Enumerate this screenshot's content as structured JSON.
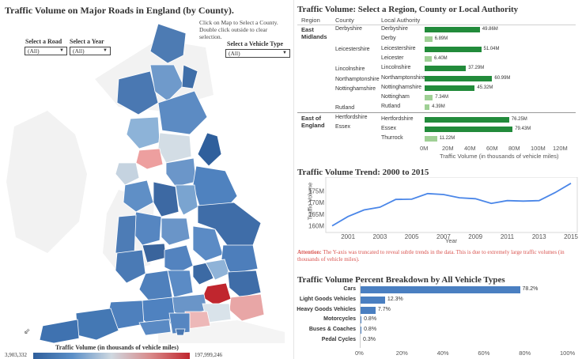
{
  "map": {
    "title": "Traffic Volume on Major Roads in England (by County).",
    "instructions": "Click on Map to Select a County. Double click outside to clear selection.",
    "filters": {
      "road": {
        "label": "Select a Road",
        "value": "(All)"
      },
      "year": {
        "label": "Select a Year",
        "value": "(All)"
      },
      "vehicle_type": {
        "label": "Select a Vehicle Type",
        "value": "(All)"
      }
    },
    "legend": {
      "title": "Traffic Volume (in thousands of vehicle miles)",
      "min": "3,903,332",
      "max": "197,999,246",
      "colors": [
        "#2f5f9c",
        "#5b8fc7",
        "#cfd8e0",
        "#d98a8a",
        "#c0262e"
      ]
    }
  },
  "authority_chart": {
    "title": "Traffic Volume: Select a Region, County or Local Authority",
    "headers": {
      "region": "Region",
      "county": "County",
      "authority": "Local Authority"
    },
    "regions": [
      {
        "name": "East Midlands",
        "line1": "East",
        "line2": "Midlands"
      },
      {
        "name": "East of England",
        "line1": "East of",
        "line2": "England"
      }
    ],
    "counties": [
      "Derbyshire",
      "Leicestershire",
      "Lincolnshire",
      "Northamptonshire",
      "Nottinghamshire",
      "Rutland",
      "Hertfordshire",
      "Essex"
    ],
    "rows": [
      {
        "authority": "Derbyshire",
        "value": 49.86,
        "label": "49.86M",
        "dark": true
      },
      {
        "authority": "Derby",
        "value": 6.89,
        "label": "6.89M",
        "dark": false
      },
      {
        "authority": "Leicestershire",
        "value": 51.04,
        "label": "51.04M",
        "dark": true
      },
      {
        "authority": "Leicester",
        "value": 6.4,
        "label": "6.40M",
        "dark": false
      },
      {
        "authority": "Lincolnshire",
        "value": 37.29,
        "label": "37.29M",
        "dark": true
      },
      {
        "authority": "Northamptonshire",
        "value": 60.99,
        "label": "60.99M",
        "dark": true
      },
      {
        "authority": "Nottinghamshire",
        "value": 45.32,
        "label": "45.32M",
        "dark": true
      },
      {
        "authority": "Nottingham",
        "value": 7.34,
        "label": "7.34M",
        "dark": false
      },
      {
        "authority": "Rutland",
        "value": 4.39,
        "label": "4.39M",
        "dark": false
      },
      {
        "authority": "Hertfordshire",
        "value": 76.25,
        "label": "76.25M",
        "dark": true
      },
      {
        "authority": "Essex",
        "value": 79.43,
        "label": "79.43M",
        "dark": true
      },
      {
        "authority": "Thurrock",
        "value": 11.22,
        "label": "11.22M",
        "dark": false
      }
    ],
    "x_ticks": [
      "0M",
      "20M",
      "40M",
      "60M",
      "80M",
      "100M",
      "120M"
    ],
    "x_max": 120,
    "x_title": "Traffic Volume (in thousands of vehicle miles)",
    "colors": {
      "dark": "#228b3b",
      "light": "#9fd095"
    }
  },
  "trend_chart": {
    "title": "Traffic Volume Trend: 2000 to 2015",
    "y_title": "Traffic Volume",
    "x_title": "Year",
    "y_ticks": [
      "175M",
      "170M",
      "165M",
      "160M"
    ],
    "x_ticks": [
      "2001",
      "2003",
      "2005",
      "2007",
      "2009",
      "2011",
      "2013",
      "2015"
    ],
    "attention_label": "Attention:",
    "attention_text": "The Y-axis was truncated to reveal subtle trends in the data. This is due to extremely large traffic volumes (in thousands of vehicle miles).",
    "line_color": "#4a86e8"
  },
  "vehicle_chart": {
    "title": "Traffic Volume Percent Breakdown by All Vehicle Types",
    "rows": [
      {
        "label": "Cars",
        "value": 78.2,
        "text": "78.2%"
      },
      {
        "label": "Light Goods Vehicles",
        "value": 12.3,
        "text": "12.3%"
      },
      {
        "label": "Heavy Goods Vehicles",
        "value": 7.7,
        "text": "7.7%"
      },
      {
        "label": "Motorcycles",
        "value": 0.8,
        "text": "0.8%"
      },
      {
        "label": "Buses & Coaches",
        "value": 0.8,
        "text": "0.8%"
      },
      {
        "label": "Pedal Cycles",
        "value": 0.3,
        "text": "0.3%"
      }
    ],
    "x_ticks": [
      "0%",
      "20%",
      "40%",
      "60%",
      "80%",
      "100%"
    ],
    "bar_color": "#4a7fc1"
  },
  "chart_data": [
    {
      "type": "bar",
      "title": "Traffic Volume: Select a Region, County or Local Authority",
      "categories": [
        "Derbyshire",
        "Derby",
        "Leicestershire",
        "Leicester",
        "Lincolnshire",
        "Northamptonshire",
        "Nottinghamshire",
        "Nottingham",
        "Rutland",
        "Hertfordshire",
        "Essex",
        "Thurrock"
      ],
      "values": [
        49.86,
        6.89,
        51.04,
        6.4,
        37.29,
        60.99,
        45.32,
        7.34,
        4.39,
        76.25,
        79.43,
        11.22
      ],
      "xlabel": "Traffic Volume (in thousands of vehicle miles)",
      "xlim": [
        0,
        120
      ]
    },
    {
      "type": "line",
      "title": "Traffic Volume Trend: 2000 to 2015",
      "x": [
        2000,
        2001,
        2002,
        2003,
        2004,
        2005,
        2006,
        2007,
        2008,
        2009,
        2010,
        2011,
        2012,
        2013,
        2014,
        2015
      ],
      "y": [
        160.0,
        164.0,
        166.8,
        168.0,
        171.3,
        171.4,
        173.8,
        173.4,
        172.0,
        171.6,
        169.6,
        170.8,
        170.6,
        170.8,
        174.2,
        178.2
      ],
      "xlabel": "Year",
      "ylabel": "Traffic Volume",
      "ylim": [
        158.5,
        179.5
      ]
    },
    {
      "type": "bar",
      "title": "Traffic Volume Percent Breakdown by All Vehicle Types",
      "categories": [
        "Cars",
        "Light Goods Vehicles",
        "Heavy Goods Vehicles",
        "Motorcycles",
        "Buses & Coaches",
        "Pedal Cycles"
      ],
      "values": [
        78.2,
        12.3,
        7.7,
        0.8,
        0.8,
        0.3
      ],
      "xlim": [
        0,
        100
      ]
    }
  ]
}
